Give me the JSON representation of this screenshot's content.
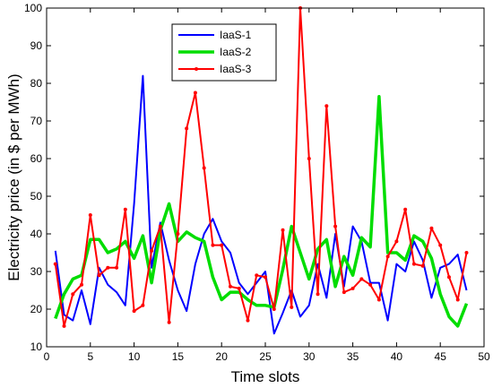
{
  "chart_data": {
    "type": "line",
    "xlabel": "Time slots",
    "ylabel": "Electricity price (in $ per MWh)",
    "xlim": [
      0,
      50
    ],
    "ylim": [
      10,
      100
    ],
    "xticks": [
      0,
      5,
      10,
      15,
      20,
      25,
      30,
      35,
      40,
      45,
      50
    ],
    "yticks": [
      10,
      20,
      30,
      40,
      50,
      60,
      70,
      80,
      90,
      100
    ],
    "grid": false,
    "legend_position": "top-center",
    "x": [
      1,
      2,
      3,
      4,
      5,
      6,
      7,
      8,
      9,
      10,
      11,
      12,
      13,
      14,
      15,
      16,
      17,
      18,
      19,
      20,
      21,
      22,
      23,
      24,
      25,
      26,
      27,
      28,
      29,
      30,
      31,
      32,
      33,
      34,
      35,
      36,
      37,
      38,
      39,
      40,
      41,
      42,
      43,
      44,
      45,
      46,
      47,
      48
    ],
    "series": [
      {
        "name": "IaaS-1",
        "color": "#0000ff",
        "marker": "none",
        "values": [
          35.5,
          18.5,
          17.0,
          25.0,
          16.0,
          31.0,
          26.5,
          24.5,
          21.0,
          48.0,
          82.0,
          31.0,
          43.0,
          33.0,
          25.0,
          19.5,
          32.0,
          40.0,
          44.0,
          38.0,
          35.0,
          27.0,
          24.0,
          27.0,
          30.0,
          13.5,
          19.0,
          25.0,
          18.0,
          21.0,
          32.0,
          23.0,
          40.0,
          26.0,
          42.0,
          38.0,
          27.0,
          27.0,
          17.0,
          32.0,
          30.0,
          38.0,
          33.0,
          23.0,
          31.0,
          32.0,
          34.5,
          25.0
        ]
      },
      {
        "name": "IaaS-2",
        "color": "#00dd00",
        "marker": "none",
        "values": [
          17.5,
          24.0,
          28.0,
          29.0,
          38.5,
          38.5,
          35.0,
          36.0,
          38.0,
          33.5,
          39.5,
          27.0,
          41.0,
          48.0,
          38.0,
          40.5,
          39.0,
          38.0,
          28.5,
          22.5,
          24.5,
          24.5,
          22.5,
          21.0,
          21.0,
          20.5,
          30.5,
          42.0,
          35.0,
          28.0,
          36.0,
          38.5,
          26.0,
          34.0,
          29.0,
          39.0,
          36.5,
          76.5,
          35.0,
          35.0,
          33.0,
          39.5,
          38.0,
          33.5,
          24.0,
          18.0,
          15.5,
          21.5
        ]
      },
      {
        "name": "IaaS-3",
        "color": "#ff0000",
        "marker": "dot",
        "values": [
          32.0,
          15.5,
          24.0,
          26.5,
          45.0,
          29.0,
          31.0,
          31.0,
          46.5,
          19.5,
          21.0,
          35.5,
          42.0,
          16.5,
          40.0,
          68.0,
          77.5,
          57.5,
          37.0,
          37.0,
          26.0,
          25.5,
          17.0,
          29.0,
          28.5,
          20.0,
          41.0,
          20.5,
          100.0,
          60.0,
          24.0,
          74.0,
          42.0,
          24.5,
          25.5,
          28.0,
          26.5,
          22.5,
          34.0,
          38.0,
          46.5,
          32.0,
          31.5,
          41.5,
          37.0,
          28.5,
          22.5,
          35.0
        ]
      }
    ]
  }
}
